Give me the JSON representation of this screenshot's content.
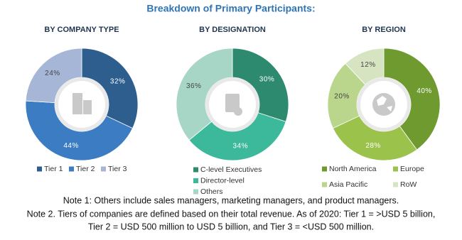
{
  "title": "Breakdown of Primary Participants:",
  "chart_data": [
    {
      "type": "pie",
      "title": "BY COMPANY TYPE",
      "categories": [
        "Tier 1",
        "Tier 2",
        "Tier 3"
      ],
      "values": [
        32,
        44,
        24
      ],
      "value_labels": [
        "32%",
        "44%",
        "24%"
      ],
      "colors": [
        "#2d5e8e",
        "#3b7cc3",
        "#a5b6d7"
      ]
    },
    {
      "type": "pie",
      "title": "BY DESIGNATION",
      "categories": [
        "C-level Executives",
        "Director-level",
        "Others"
      ],
      "values": [
        30,
        34,
        36
      ],
      "value_labels": [
        "30%",
        "34%",
        "36%"
      ],
      "colors": [
        "#2e8a6f",
        "#3cb89b",
        "#a7d6c6"
      ]
    },
    {
      "type": "pie",
      "title": "BY REGION",
      "categories": [
        "North America",
        "Europe",
        "Asia Pacific",
        "RoW"
      ],
      "values": [
        40,
        28,
        20,
        12
      ],
      "value_labels": [
        "40%",
        "28%",
        "20%",
        "12%"
      ],
      "colors": [
        "#6e9a2f",
        "#9bc24b",
        "#bad58c",
        "#d7e4c2"
      ]
    }
  ],
  "notes": [
    "Note 1: Others include sales managers, marketing managers, and product managers.",
    "Note 2. Tiers of companies are defined based on their total revenue. As of 2020: Tier 1 = >USD 5 billion,",
    "Tier 2 = USD 500 million to USD 5 billion, and Tier 3 = <USD 500 million."
  ]
}
